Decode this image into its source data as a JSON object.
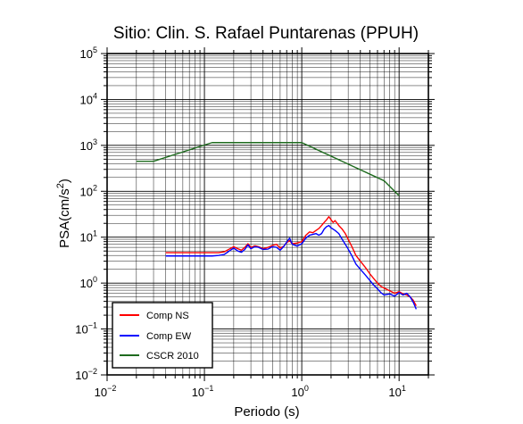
{
  "chart_data": {
    "type": "line",
    "title": "Sitio: Clin. S. Rafael Puntarenas (PPUH)",
    "xlabel": "Periodo (s)",
    "ylabel_base": "PSA(cm/s",
    "ylabel_sup": "2",
    "ylabel_end": ")",
    "x_scale": "log",
    "y_scale": "log",
    "xlim": [
      0.01,
      20
    ],
    "ylim": [
      0.01,
      100000
    ],
    "grid": true,
    "legend_position": "bottom-left",
    "x_ticks": [
      {
        "value": 0.01,
        "base": "10",
        "exp": "−2"
      },
      {
        "value": 0.1,
        "base": "10",
        "exp": "−1"
      },
      {
        "value": 1,
        "base": "10",
        "exp": "0"
      },
      {
        "value": 10,
        "base": "10",
        "exp": "1"
      }
    ],
    "y_ticks": [
      {
        "value": 0.01,
        "base": "10",
        "exp": "−2"
      },
      {
        "value": 0.1,
        "base": "10",
        "exp": "−1"
      },
      {
        "value": 1,
        "base": "10",
        "exp": "0"
      },
      {
        "value": 10,
        "base": "10",
        "exp": "1"
      },
      {
        "value": 100,
        "base": "10",
        "exp": "2"
      },
      {
        "value": 1000,
        "base": "10",
        "exp": "3"
      },
      {
        "value": 10000,
        "base": "10",
        "exp": "4"
      },
      {
        "value": 100000,
        "base": "10",
        "exp": "5"
      }
    ],
    "series": [
      {
        "name": "Comp NS",
        "color": "#ff0000",
        "x": [
          0.04,
          0.06,
          0.08,
          0.1,
          0.12,
          0.14,
          0.16,
          0.18,
          0.2,
          0.22,
          0.24,
          0.26,
          0.28,
          0.3,
          0.33,
          0.36,
          0.4,
          0.45,
          0.5,
          0.55,
          0.6,
          0.65,
          0.7,
          0.75,
          0.8,
          0.9,
          1.0,
          1.1,
          1.2,
          1.3,
          1.4,
          1.5,
          1.6,
          1.7,
          1.8,
          1.9,
          2.0,
          2.1,
          2.2,
          2.4,
          2.6,
          2.8,
          3.0,
          3.3,
          3.6,
          4.0,
          4.5,
          5.0,
          5.5,
          6.0,
          6.5,
          7.0,
          8.0,
          9.0,
          10.0,
          11.0,
          12.0,
          13.0,
          14.0,
          15.0
        ],
        "y": [
          4.6,
          4.6,
          4.6,
          4.6,
          4.6,
          4.6,
          4.8,
          5.5,
          6.2,
          5.6,
          5.2,
          6.0,
          7.2,
          6.0,
          6.5,
          6.2,
          5.6,
          6.0,
          6.6,
          7.0,
          5.8,
          6.3,
          7.6,
          8.4,
          7.2,
          7.5,
          8.0,
          11.0,
          13.0,
          12.5,
          14.0,
          15.5,
          18.0,
          21.0,
          24.0,
          28.0,
          24.0,
          21.0,
          23.0,
          18.0,
          15.0,
          12.0,
          9.0,
          6.0,
          4.0,
          3.0,
          2.2,
          1.6,
          1.25,
          1.0,
          0.85,
          0.78,
          0.68,
          0.6,
          0.65,
          0.58,
          0.55,
          0.5,
          0.42,
          0.32
        ]
      },
      {
        "name": "Comp EW",
        "color": "#0000ff",
        "x": [
          0.04,
          0.06,
          0.08,
          0.1,
          0.12,
          0.14,
          0.16,
          0.18,
          0.2,
          0.22,
          0.24,
          0.26,
          0.28,
          0.3,
          0.33,
          0.36,
          0.4,
          0.45,
          0.5,
          0.55,
          0.6,
          0.65,
          0.7,
          0.75,
          0.8,
          0.9,
          1.0,
          1.1,
          1.2,
          1.3,
          1.4,
          1.5,
          1.6,
          1.7,
          1.8,
          1.9,
          2.0,
          2.1,
          2.2,
          2.4,
          2.6,
          2.8,
          3.0,
          3.3,
          3.6,
          4.0,
          4.5,
          5.0,
          5.5,
          6.0,
          6.5,
          7.0,
          8.0,
          9.0,
          10.0,
          11.0,
          12.0,
          13.0,
          14.0,
          15.0
        ],
        "y": [
          3.9,
          3.9,
          3.9,
          3.9,
          3.9,
          4.0,
          4.2,
          5.0,
          5.8,
          5.0,
          4.7,
          5.4,
          6.8,
          5.6,
          6.2,
          6.0,
          5.4,
          5.5,
          6.2,
          6.0,
          5.2,
          6.2,
          7.8,
          9.5,
          7.0,
          6.4,
          7.2,
          9.5,
          11.0,
          11.5,
          12.0,
          11.0,
          12.0,
          15.0,
          17.0,
          18.0,
          16.0,
          15.0,
          14.0,
          12.0,
          9.0,
          7.0,
          5.5,
          3.8,
          2.6,
          2.0,
          1.5,
          1.15,
          0.9,
          0.75,
          0.62,
          0.55,
          0.58,
          0.52,
          0.62,
          0.55,
          0.6,
          0.5,
          0.38,
          0.27
        ]
      },
      {
        "name": "CSCR 2010",
        "color": "#1e6b1e",
        "x": [
          0.02,
          0.03,
          0.12,
          1.0,
          7.0,
          10.0
        ],
        "y": [
          450,
          450,
          1150,
          1150,
          170,
          80
        ]
      }
    ]
  }
}
